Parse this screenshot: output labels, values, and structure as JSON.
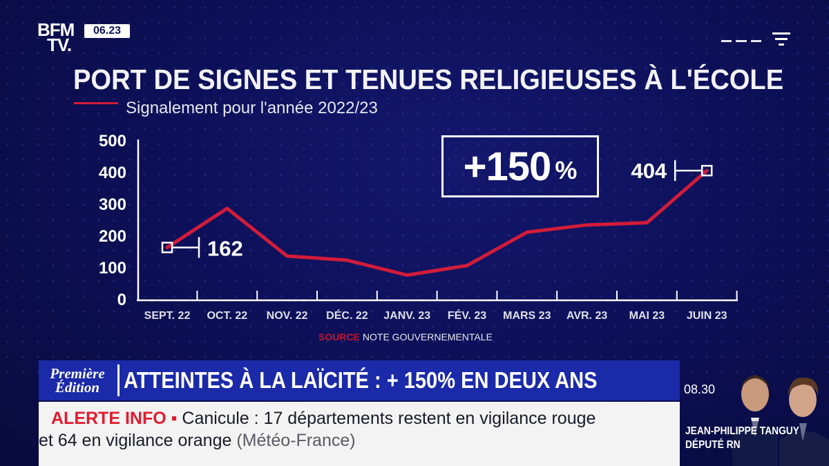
{
  "channel": {
    "logo_line1": "BFM",
    "logo_line2": "TV.",
    "clock": "06.23"
  },
  "chart_data": {
    "type": "line",
    "title": "PORT DE SIGNES ET TENUES RELIGIEUSES À L'ÉCOLE",
    "subtitle": "Signalement pour l'année 2022/23",
    "categories": [
      "SEPT. 22",
      "OCT. 22",
      "NOV. 22",
      "DÉC. 22",
      "JANV. 23",
      "FÉV. 23",
      "MARS 23",
      "AVR. 23",
      "MAI 23",
      "JUIN 23"
    ],
    "series": [
      {
        "name": "",
        "color": "#d21c3a",
        "values": [
          162,
          285,
          135,
          122,
          75,
          105,
          210,
          233,
          240,
          404
        ]
      }
    ],
    "ylim": [
      0,
      500
    ],
    "yticks": [
      "0",
      "100",
      "200",
      "300",
      "400",
      "500"
    ],
    "annotations": [
      {
        "label": "162",
        "index": 0
      },
      {
        "label": "404",
        "index": 9
      }
    ],
    "callout": {
      "value": "+150",
      "unit": "%"
    },
    "source_key": "SOURCE",
    "source_text": "NOTE GOUVERNEMENTALE",
    "grid": false,
    "xlabel": "",
    "ylabel": ""
  },
  "lower_third": {
    "show_line1": "Première",
    "show_line2": "Édition",
    "headline": "ATTEINTES À LA LAÏCITÉ : + 150% EN DEUX ANS",
    "ticker_alert": "ALERTE INFO ▪",
    "ticker_line1": " Canicule : 17 départements restent en vigilance rouge",
    "ticker_line2": "et 64 en vigilance orange",
    "ticker_source": " (Météo-France)"
  },
  "guest": {
    "time": "08.30",
    "name": "JEAN-PHILIPPE TANGUY",
    "role": "DÉPUTÉ RN"
  },
  "colors": {
    "background": "#0d1058",
    "line": "#d21c3a",
    "banner": "#1b2aa8",
    "alert": "#e01b2f"
  }
}
